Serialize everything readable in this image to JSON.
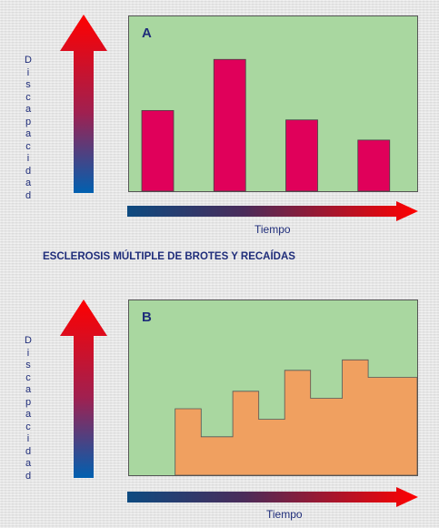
{
  "title": "ESCLEROSIS MÚLTIPLE DE BROTES Y RECAÍDAS",
  "colors": {
    "panel_bg": "#a9d7a0",
    "bar_fill": "#e0005a",
    "step_fill": "#f0a060",
    "text": "#1f2d7a",
    "arrow_bottom": "#0060b0",
    "arrow_top": "#ff0000"
  },
  "chart_data": [
    {
      "type": "bar",
      "panel_label": "A",
      "xlabel": "Tiempo",
      "ylabel": "Discapacidad",
      "values": [
        0.6,
        0.98,
        0.53,
        0.38
      ],
      "ylim": [
        0,
        1.3
      ],
      "grid": false
    },
    {
      "type": "area",
      "panel_label": "B",
      "xlabel": "Tiempo",
      "ylabel": "Discapacidad",
      "steps": [
        {
          "x0": 0.16,
          "x1": 0.25,
          "y": 0.38
        },
        {
          "x0": 0.25,
          "x1": 0.36,
          "y": 0.22
        },
        {
          "x0": 0.36,
          "x1": 0.45,
          "y": 0.48
        },
        {
          "x0": 0.45,
          "x1": 0.54,
          "y": 0.32
        },
        {
          "x0": 0.54,
          "x1": 0.63,
          "y": 0.6
        },
        {
          "x0": 0.63,
          "x1": 0.74,
          "y": 0.44
        },
        {
          "x0": 0.74,
          "x1": 0.83,
          "y": 0.66
        },
        {
          "x0": 0.83,
          "x1": 1.0,
          "y": 0.56
        }
      ],
      "ylim": [
        0,
        1
      ],
      "grid": false
    }
  ]
}
